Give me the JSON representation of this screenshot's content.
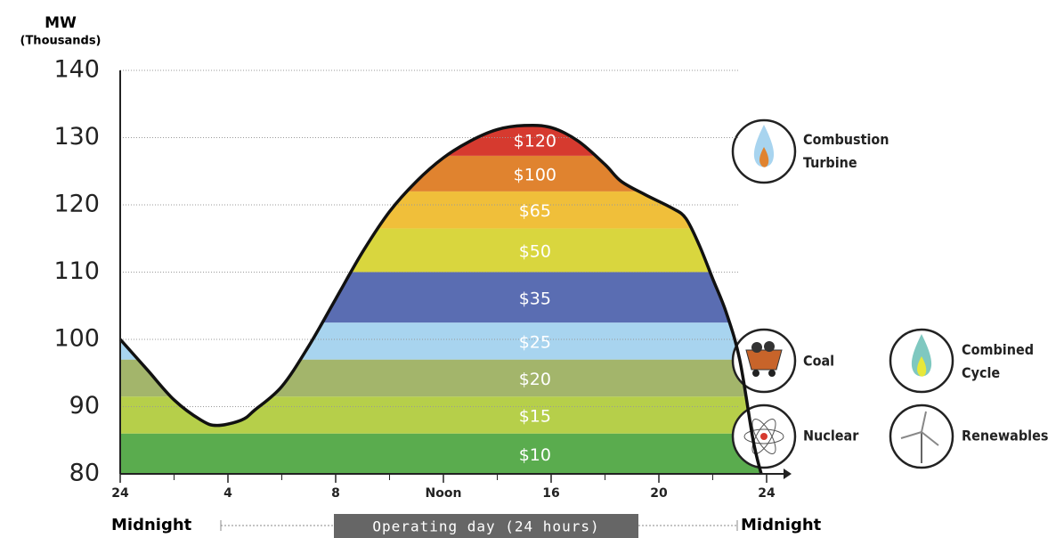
{
  "chart_data": {
    "type": "stacked-area-under-curve",
    "y_label": "MW",
    "y_sublabel": "(Thousands)",
    "ylim": [
      80,
      140
    ],
    "yticks": [
      80,
      90,
      100,
      110,
      120,
      130,
      140
    ],
    "xlim": [
      0,
      24
    ],
    "xticks": [
      {
        "value": 0,
        "label": "24"
      },
      4,
      8,
      {
        "value": 12,
        "label": "Noon"
      },
      16,
      20,
      24
    ],
    "xminor": [
      2,
      6,
      10,
      14,
      18,
      22
    ],
    "grid": true,
    "bands": {
      "labels": [
        "$10",
        "$15",
        "$20",
        "$25",
        "$35",
        "$50",
        "$65",
        "$100",
        "$120"
      ],
      "values": [
        6,
        5.5,
        5.5,
        5.5,
        7.5,
        6.5,
        5.5,
        5.3,
        4.7
      ],
      "colors": [
        "#5aac4e",
        "#b6cf4a",
        "#a3b56b",
        "#a8d4ef",
        "#5a6db2",
        "#d9d63e",
        "#f0bf3a",
        "#e0832f",
        "#d63a2f"
      ]
    },
    "load": {
      "x": [
        0,
        1,
        2,
        3,
        3.6,
        4.5,
        5,
        6,
        7,
        8,
        9,
        10,
        11,
        12,
        13,
        14,
        15,
        16,
        17,
        18,
        18.6,
        19.5,
        20.5,
        21,
        21.5,
        22,
        22.5,
        23,
        23.5,
        23.8
      ],
      "values": [
        100,
        95.5,
        91,
        88,
        87.2,
        88,
        89.5,
        93,
        99,
        106,
        113,
        119,
        123.5,
        127,
        129.5,
        131.2,
        131.8,
        131.5,
        129.5,
        126,
        123.5,
        121.5,
        119.5,
        118,
        114,
        109,
        104,
        97,
        85,
        80
      ]
    },
    "x_left_label": "Midnight",
    "x_center_label": "Operating day (24 hours)",
    "x_right_label": "Midnight",
    "legend": [
      "Combustion Turbine",
      "Coal",
      "Combined Cycle",
      "Nuclear",
      "Renewables"
    ]
  }
}
